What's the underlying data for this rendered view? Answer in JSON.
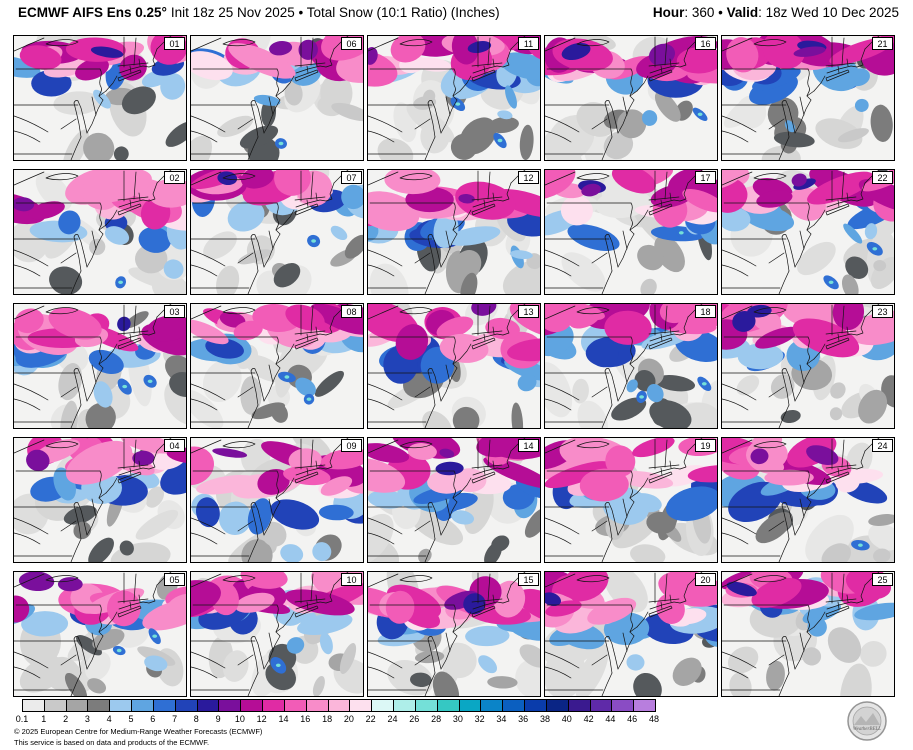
{
  "header": {
    "model": "ECMWF AIFS Ens 0.25°",
    "init": "Init 18z 25 Nov 2025 • Total Snow (10:1 Ratio) (Inches)",
    "hour_label": "Hour",
    "hour_value": ": 360",
    "separator": " • ",
    "valid_label": "Valid",
    "valid_value": ": 18z Wed 10 Dec 2025"
  },
  "panels": [
    {
      "member": "01"
    },
    {
      "member": "06"
    },
    {
      "member": "11"
    },
    {
      "member": "16"
    },
    {
      "member": "21"
    },
    {
      "member": "02"
    },
    {
      "member": "07"
    },
    {
      "member": "12"
    },
    {
      "member": "17"
    },
    {
      "member": "22"
    },
    {
      "member": "03"
    },
    {
      "member": "08"
    },
    {
      "member": "13"
    },
    {
      "member": "18"
    },
    {
      "member": "23"
    },
    {
      "member": "04"
    },
    {
      "member": "09"
    },
    {
      "member": "14"
    },
    {
      "member": "19"
    },
    {
      "member": "24"
    },
    {
      "member": "05"
    },
    {
      "member": "10"
    },
    {
      "member": "15"
    },
    {
      "member": "20"
    },
    {
      "member": "25"
    }
  ],
  "colorbar": {
    "labels": [
      "0.1",
      "1",
      "2",
      "3",
      "4",
      "5",
      "6",
      "7",
      "8",
      "9",
      "10",
      "12",
      "14",
      "16",
      "18",
      "20",
      "22",
      "24",
      "26",
      "28",
      "30",
      "32",
      "34",
      "36",
      "38",
      "40",
      "42",
      "44",
      "46",
      "48"
    ],
    "colors": [
      "#ebebeb",
      "#c9c9c9",
      "#a5a5a5",
      "#7c7c7c",
      "#9cc9ee",
      "#5fa5e1",
      "#2f6fd4",
      "#2143b8",
      "#2a1a9c",
      "#7a0f9c",
      "#b50d96",
      "#e02ba4",
      "#f25cb7",
      "#f88cc9",
      "#fbb6da",
      "#fde0ee",
      "#dcf8f6",
      "#aeeee9",
      "#74e0d8",
      "#35c8c3",
      "#0aa7c4",
      "#0b84c8",
      "#0b5fc0",
      "#0a3cab",
      "#0a2585",
      "#3a1a8f",
      "#5f2aa8",
      "#8a4cc4",
      "#b87ede"
    ]
  },
  "footer": {
    "line1": "© 2025 European Centre for Medium-Range Weather Forecasts (ECMWF)",
    "line2": "This service is based on data and products of the ECMWF.",
    "logo_text": "WeatherBELL"
  }
}
